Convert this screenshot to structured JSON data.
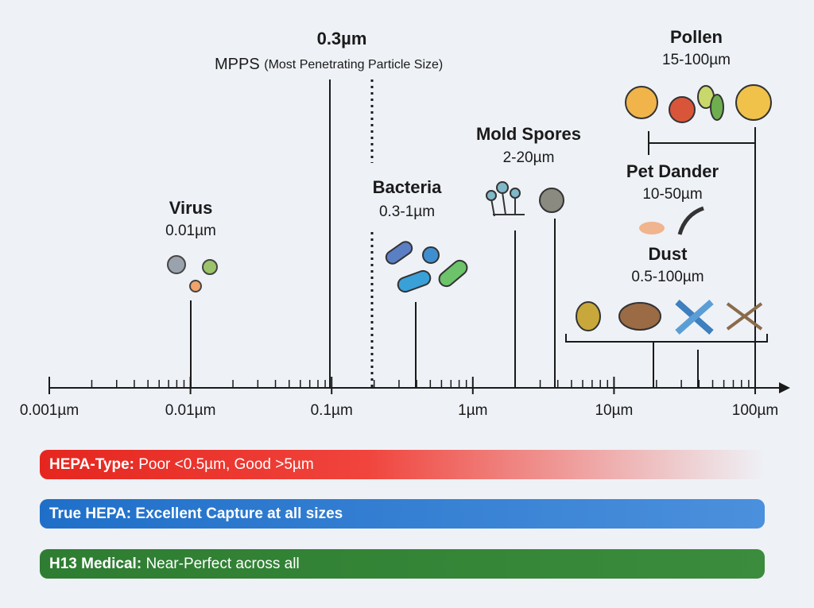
{
  "mpps": {
    "value": "0.3µm",
    "label": "MPPS",
    "note": "(Most Penetrating Particle Size)"
  },
  "particles": [
    {
      "name": "Virus",
      "size": "0.01µm"
    },
    {
      "name": "Bacteria",
      "size": "0.3-1µm"
    },
    {
      "name": "Mold Spores",
      "size": "2-20µm"
    },
    {
      "name": "Pet Dander",
      "size": "10-50µm"
    },
    {
      "name": "Dust",
      "size": "0.5-100µm"
    },
    {
      "name": "Pollen",
      "size": "15-100µm"
    }
  ],
  "axis": {
    "labels": [
      "0.001µm",
      "0.01µm",
      "0.1µm",
      "1µm",
      "10µm",
      "100µm"
    ]
  },
  "filters": [
    {
      "name": "HEPA-Type:",
      "description": "Poor <0.5µm, Good >5µm"
    },
    {
      "name": "True HEPA:",
      "description": "Excellent Capture at all sizes"
    },
    {
      "name": "H13 Medical:",
      "description": "Near-Perfect across all"
    }
  ]
}
